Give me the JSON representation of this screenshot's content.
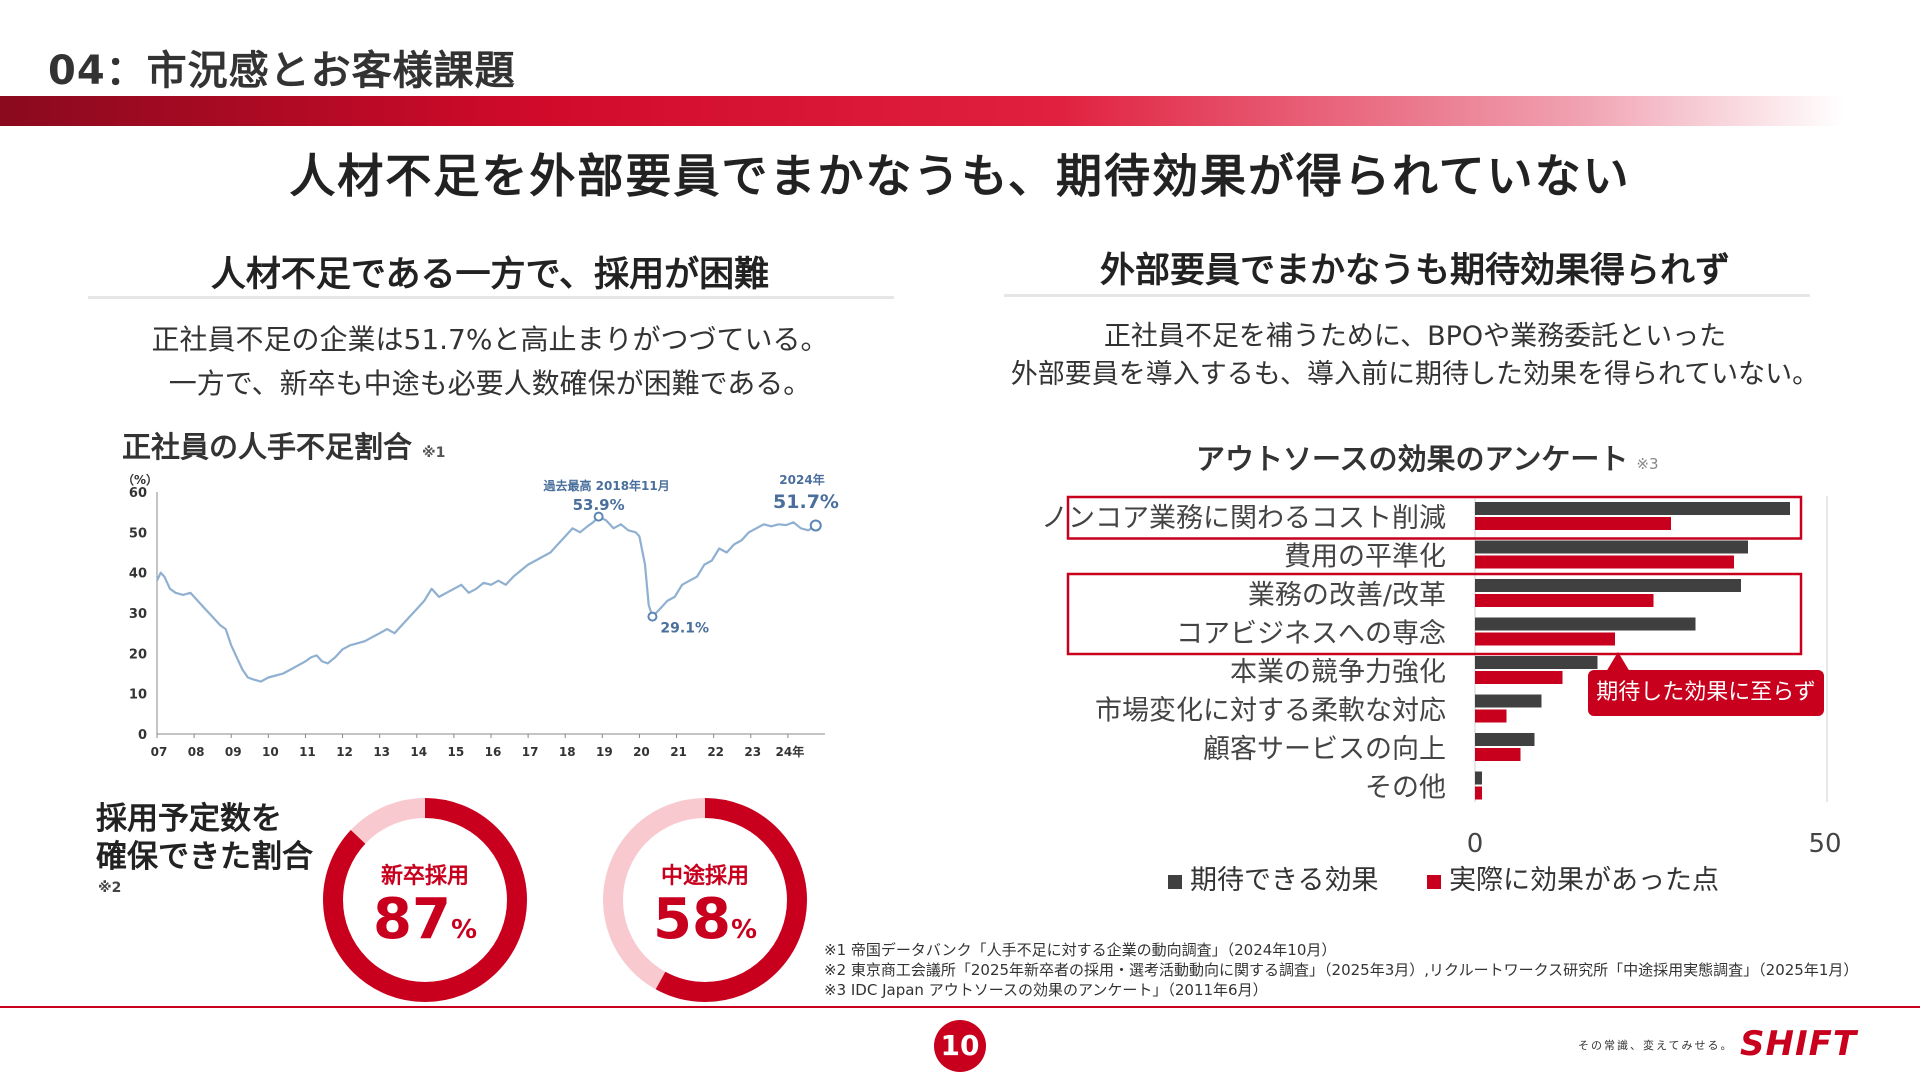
{
  "header": {
    "section_title": "04：市況感とお客様課題",
    "headline": "人材不足を外部要員でまかなうも、期待効果が得られていない"
  },
  "left": {
    "sub_heading": "人材不足である一方で、採用が困難",
    "desc_line1": "正社員不足の企業は51.7%と高止まりがつづている。",
    "desc_line2": "一方で、新卒も中途も必要人数確保が困難である。",
    "chart_title": "正社員の人手不足割合",
    "chart_note": "※1",
    "recruit_title_line1": "採用予定数を",
    "recruit_title_line2": "確保できた割合",
    "recruit_note": "※2"
  },
  "right": {
    "sub_heading": "外部要員でまかなうも期待効果得られず",
    "desc_line1": "正社員不足を補うために、BPOや業務委託といった",
    "desc_line2": "外部要員を導入するも、導入前に期待した効果を得られていない。",
    "chart_title": "アウトソースの効果のアンケート",
    "chart_note": "※3",
    "callout": "期待した効果に至らず"
  },
  "colors": {
    "accent": "#c8001e",
    "dark_bar": "#404040",
    "line": "#8fb0d0",
    "donut_light": "#f9c9d0"
  },
  "chart_data": [
    {
      "type": "line",
      "title": "正社員の人手不足割合",
      "ylabel": "（%）",
      "ylim": [
        0,
        60
      ],
      "yticks": [
        "0",
        "10",
        "20",
        "30",
        "40",
        "50",
        "60"
      ],
      "xticks": [
        "07",
        "08",
        "09",
        "10",
        "11",
        "12",
        "13",
        "14",
        "15",
        "16",
        "17",
        "18",
        "19",
        "20",
        "21",
        "22",
        "23",
        "24年"
      ],
      "x_start": 2007.0,
      "x_end": 2025.0,
      "points": [
        [
          2007.0,
          38
        ],
        [
          2007.1,
          40
        ],
        [
          2007.2,
          39
        ],
        [
          2007.35,
          36
        ],
        [
          2007.5,
          35
        ],
        [
          2007.7,
          34.5
        ],
        [
          2007.9,
          35
        ],
        [
          2008.1,
          33
        ],
        [
          2008.3,
          31
        ],
        [
          2008.5,
          29
        ],
        [
          2008.7,
          27
        ],
        [
          2008.85,
          26
        ],
        [
          2009.0,
          22
        ],
        [
          2009.15,
          19
        ],
        [
          2009.3,
          16
        ],
        [
          2009.45,
          14
        ],
        [
          2009.6,
          13.5
        ],
        [
          2009.8,
          13
        ],
        [
          2010.0,
          14
        ],
        [
          2010.2,
          14.5
        ],
        [
          2010.4,
          15
        ],
        [
          2010.6,
          16
        ],
        [
          2010.8,
          17
        ],
        [
          2011.0,
          18
        ],
        [
          2011.15,
          19
        ],
        [
          2011.3,
          19.5
        ],
        [
          2011.45,
          18
        ],
        [
          2011.6,
          17.5
        ],
        [
          2011.8,
          19
        ],
        [
          2012.0,
          21
        ],
        [
          2012.2,
          22
        ],
        [
          2012.4,
          22.5
        ],
        [
          2012.6,
          23
        ],
        [
          2012.8,
          24
        ],
        [
          2013.0,
          25
        ],
        [
          2013.2,
          26
        ],
        [
          2013.4,
          25
        ],
        [
          2013.6,
          27
        ],
        [
          2013.8,
          29
        ],
        [
          2014.0,
          31
        ],
        [
          2014.2,
          33
        ],
        [
          2014.4,
          36
        ],
        [
          2014.6,
          34
        ],
        [
          2014.8,
          35
        ],
        [
          2015.0,
          36
        ],
        [
          2015.2,
          37
        ],
        [
          2015.4,
          35
        ],
        [
          2015.6,
          36
        ],
        [
          2015.8,
          37.5
        ],
        [
          2016.0,
          37
        ],
        [
          2016.2,
          38
        ],
        [
          2016.4,
          37
        ],
        [
          2016.6,
          39
        ],
        [
          2016.8,
          40.5
        ],
        [
          2017.0,
          42
        ],
        [
          2017.2,
          43
        ],
        [
          2017.4,
          44
        ],
        [
          2017.6,
          45
        ],
        [
          2017.8,
          47
        ],
        [
          2018.0,
          49
        ],
        [
          2018.2,
          51
        ],
        [
          2018.4,
          50
        ],
        [
          2018.6,
          51.5
        ],
        [
          2018.75,
          52.5
        ],
        [
          2018.9,
          53.9
        ],
        [
          2019.1,
          53
        ],
        [
          2019.3,
          51
        ],
        [
          2019.5,
          52
        ],
        [
          2019.7,
          50.5
        ],
        [
          2019.9,
          50
        ],
        [
          2020.0,
          49
        ],
        [
          2020.15,
          42
        ],
        [
          2020.25,
          32
        ],
        [
          2020.35,
          29.1
        ],
        [
          2020.55,
          31
        ],
        [
          2020.75,
          33
        ],
        [
          2020.95,
          34
        ],
        [
          2021.15,
          37
        ],
        [
          2021.35,
          38
        ],
        [
          2021.55,
          39
        ],
        [
          2021.75,
          42
        ],
        [
          2021.95,
          43
        ],
        [
          2022.15,
          46
        ],
        [
          2022.35,
          45
        ],
        [
          2022.55,
          47
        ],
        [
          2022.75,
          48
        ],
        [
          2022.95,
          50
        ],
        [
          2023.15,
          51
        ],
        [
          2023.35,
          52
        ],
        [
          2023.55,
          51.5
        ],
        [
          2023.75,
          52
        ],
        [
          2023.95,
          51.8
        ],
        [
          2024.15,
          52.5
        ],
        [
          2024.35,
          51
        ],
        [
          2024.55,
          50.5
        ],
        [
          2024.75,
          51.7
        ]
      ],
      "annotations": [
        {
          "label": "過去最高 2018年11月",
          "value_label": "53.9%",
          "x": 2018.9,
          "y": 53.9
        },
        {
          "label": "",
          "value_label": "29.1%",
          "x": 2020.35,
          "y": 29.1
        },
        {
          "label": "2024年",
          "value_label": "51.7%",
          "x": 2024.75,
          "y": 51.7
        }
      ]
    },
    {
      "type": "pie",
      "title": "採用予定数を確保できた割合",
      "segments": [
        {
          "name": "新卒採用",
          "value": 87,
          "display": "87",
          "unit": "%"
        },
        {
          "name": "中途採用",
          "value": 58,
          "display": "58",
          "unit": "%"
        }
      ]
    },
    {
      "type": "bar",
      "orientation": "horizontal",
      "title": "アウトソースの効果のアンケート",
      "categories": [
        "ノンコア業務に関わるコスト削減",
        "費用の平準化",
        "業務の改善/改革",
        "コアビジネスへの専念",
        "本業の競争力強化",
        "市場変化に対する柔軟な対応",
        "顧客サービスの向上",
        "その他"
      ],
      "series": [
        {
          "name": "期待できる効果",
          "color": "#404040",
          "values": [
            45,
            39,
            38,
            31.5,
            17.5,
            9.5,
            8.5,
            1
          ]
        },
        {
          "name": "実際に効果があった点",
          "color": "#c8001e",
          "values": [
            28,
            37,
            25.5,
            20,
            12.5,
            4.5,
            6.5,
            1
          ]
        }
      ],
      "xlim": [
        0,
        50
      ],
      "xticks": [
        "0",
        "50"
      ],
      "highlight_groups": [
        [
          0
        ],
        [
          2,
          3
        ]
      ]
    }
  ],
  "footnotes": {
    "n1": "※1 帝国データバンク「人手不足に対する企業の動向調査」（2024年10月）",
    "n2": "※2 東京商工会議所「2025年新卒者の採用・選考活動動向に関する調査」（2025年3月）,リクルートワークス研究所「中途採用実態調査」（2025年1月）",
    "n3": "※3 IDC Japan アウトソースの効果のアンケート」（2011年6月）"
  },
  "footer": {
    "page_number": "10",
    "tagline": "その常識、変えてみせる。",
    "logo": "SHIFT"
  }
}
